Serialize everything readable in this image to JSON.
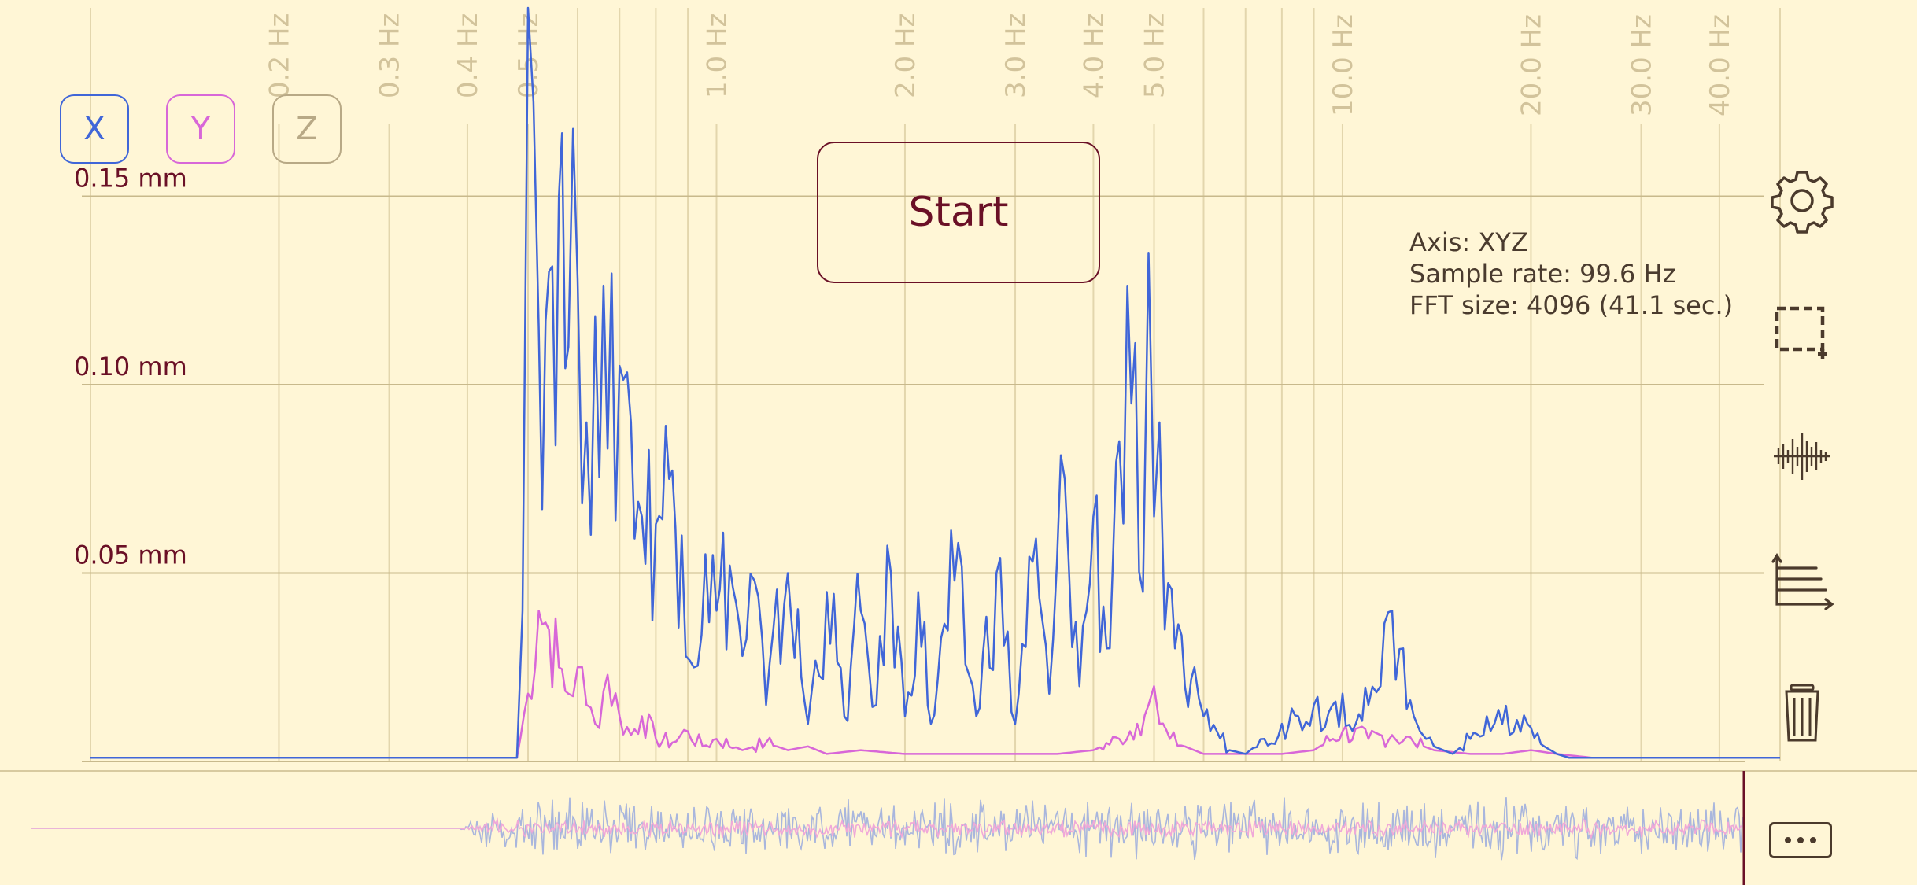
{
  "axis_buttons": [
    {
      "label": "X",
      "color": "#4066d8"
    },
    {
      "label": "Y",
      "color": "#d867d8"
    },
    {
      "label": "Z",
      "color": "#b8a986"
    }
  ],
  "start_button": {
    "label": "Start"
  },
  "info": {
    "axis": "Axis: XYZ",
    "sample_rate": "Sample rate: 99.6 Hz",
    "fft_size": "FFT size: 4096 (41.1 sec.)"
  },
  "toolbar": {
    "items": [
      {
        "icon": "gear-icon"
      },
      {
        "icon": "crop-selection-icon"
      },
      {
        "icon": "waveform-icon"
      },
      {
        "icon": "axis-scale-icon"
      },
      {
        "icon": "trash-icon"
      }
    ],
    "more_icon": "more-options-icon"
  },
  "colors": {
    "background": "#fff6d6",
    "x_series": "#4066d8",
    "y_series": "#d867d8",
    "grid": "#e3d6ad",
    "accent": "#6a1026"
  },
  "chart_data": [
    {
      "type": "line",
      "x_scale": "log",
      "xlim": [
        0.1,
        50
      ],
      "ylim": [
        0,
        0.2
      ],
      "x_tick_labels": [
        "0.2 Hz",
        "0.3 Hz",
        "0.4 Hz",
        "0.5 Hz",
        "1.0 Hz",
        "2.0 Hz",
        "3.0 Hz",
        "4.0 Hz",
        "5.0 Hz",
        "10.0 Hz",
        "20.0 Hz",
        "30.0 Hz",
        "40.0 Hz"
      ],
      "x_ticks": [
        0.2,
        0.3,
        0.4,
        0.5,
        1.0,
        2.0,
        3.0,
        4.0,
        5.0,
        10.0,
        20.0,
        30.0,
        40.0
      ],
      "y_tick_labels": [
        "0.15 mm",
        "0.10 mm",
        "0.05 mm"
      ],
      "y_ticks": [
        0.15,
        0.1,
        0.05
      ],
      "grid": true,
      "series": [
        {
          "color": "#4066d8",
          "x": [
            0.1,
            0.48,
            0.49,
            0.5,
            0.51,
            0.52,
            0.54,
            0.56,
            0.58,
            0.6,
            0.62,
            0.64,
            0.67,
            0.7,
            0.73,
            0.76,
            0.8,
            0.84,
            0.88,
            0.92,
            0.96,
            1.0,
            1.05,
            1.1,
            1.15,
            1.2,
            1.3,
            1.4,
            1.5,
            1.6,
            1.7,
            1.8,
            1.9,
            2.0,
            2.1,
            2.2,
            2.4,
            2.6,
            2.8,
            3.0,
            3.2,
            3.4,
            3.6,
            3.8,
            4.0,
            4.2,
            4.4,
            4.6,
            4.8,
            4.9,
            5.0,
            5.1,
            5.2,
            5.4,
            5.6,
            5.8,
            6.0,
            6.3,
            6.6,
            7.0,
            7.5,
            8.0,
            8.5,
            9.0,
            9.5,
            10.0,
            10.5,
            11.0,
            11.5,
            12.0,
            12.5,
            13.0,
            13.3,
            13.6,
            14.0,
            14.5,
            15.0,
            16.0,
            17.0,
            18.0,
            19.0,
            20.0,
            21.0,
            22.0,
            23.0,
            25.0,
            30.0,
            40.0,
            50.0
          ],
          "y": [
            0.001,
            0.001,
            0.04,
            0.2,
            0.175,
            0.115,
            0.13,
            0.15,
            0.11,
            0.128,
            0.09,
            0.118,
            0.083,
            0.105,
            0.09,
            0.065,
            0.063,
            0.075,
            0.06,
            0.025,
            0.055,
            0.04,
            0.052,
            0.028,
            0.048,
            0.015,
            0.05,
            0.01,
            0.045,
            0.012,
            0.04,
            0.015,
            0.05,
            0.012,
            0.045,
            0.01,
            0.048,
            0.012,
            0.05,
            0.01,
            0.053,
            0.018,
            0.075,
            0.02,
            0.065,
            0.03,
            0.085,
            0.095,
            0.045,
            0.135,
            0.065,
            0.09,
            0.035,
            0.03,
            0.02,
            0.025,
            0.012,
            0.008,
            0.003,
            0.002,
            0.006,
            0.01,
            0.012,
            0.015,
            0.013,
            0.018,
            0.01,
            0.015,
            0.02,
            0.04,
            0.03,
            0.012,
            0.008,
            0.006,
            0.004,
            0.003,
            0.002,
            0.006,
            0.012,
            0.01,
            0.011,
            0.009,
            0.004,
            0.002,
            0.001,
            0.001,
            0.001,
            0.001,
            0.001
          ]
        },
        {
          "color": "#d867d8",
          "x": [
            0.1,
            0.48,
            0.5,
            0.52,
            0.54,
            0.56,
            0.58,
            0.6,
            0.62,
            0.64,
            0.67,
            0.7,
            0.73,
            0.76,
            0.8,
            0.85,
            0.9,
            0.95,
            1.0,
            1.1,
            1.2,
            1.3,
            1.4,
            1.5,
            1.7,
            2.0,
            2.5,
            3.0,
            3.5,
            4.0,
            4.4,
            4.7,
            4.9,
            5.0,
            5.1,
            5.3,
            5.6,
            6.0,
            7.0,
            8.0,
            9.0,
            10.0,
            11.0,
            12.0,
            13.0,
            14.0,
            16.0,
            18.0,
            20.0,
            22.0,
            25.0,
            30.0,
            40.0,
            50.0
          ],
          "y": [
            0.001,
            0.001,
            0.018,
            0.04,
            0.035,
            0.025,
            0.018,
            0.025,
            0.015,
            0.01,
            0.023,
            0.012,
            0.007,
            0.012,
            0.006,
            0.005,
            0.008,
            0.004,
            0.006,
            0.003,
            0.005,
            0.003,
            0.004,
            0.002,
            0.003,
            0.002,
            0.002,
            0.002,
            0.002,
            0.003,
            0.006,
            0.01,
            0.015,
            0.02,
            0.01,
            0.006,
            0.004,
            0.002,
            0.002,
            0.002,
            0.003,
            0.008,
            0.006,
            0.007,
            0.005,
            0.003,
            0.002,
            0.002,
            0.003,
            0.002,
            0.001,
            0.001,
            0.001,
            0.001
          ]
        }
      ]
    },
    {
      "type": "line",
      "x": [
        0,
        0.25,
        0.27,
        1.0
      ],
      "series": [
        {
          "color": "#a9b6dd",
          "values": [
            0.0,
            0.0,
            1.0,
            1.0
          ]
        },
        {
          "color": "#f0a8d8",
          "values": [
            0.0,
            0.0,
            0.3,
            0.3
          ]
        }
      ]
    }
  ]
}
